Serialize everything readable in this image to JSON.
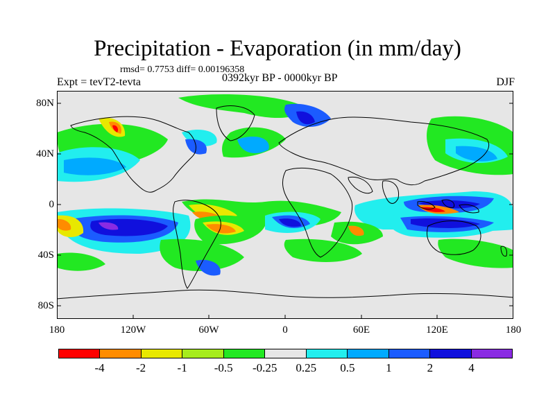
{
  "title": "Precipitation - Evaporation (in mm/day)",
  "stats": "rmsd= 0.7753 diff= 0.00196358",
  "experiment": "Expt = tevT2-tevta",
  "period": "0392kyr BP - 0000kyr BP",
  "season": "DJF",
  "axes": {
    "y_ticks": [
      "80N",
      "40N",
      "0",
      "40S",
      "80S"
    ],
    "x_ticks": [
      "180",
      "120W",
      "60W",
      "0",
      "60E",
      "120E",
      "180"
    ]
  },
  "colorbar": {
    "colors": [
      "#ff0000",
      "#ff8c00",
      "#e8e800",
      "#a6ec1c",
      "#22e822",
      "#e6e6e6",
      "#22eeee",
      "#00aaff",
      "#1b5cff",
      "#1010dd",
      "#8a2be2"
    ],
    "labels": [
      "-4",
      "-2",
      "-1",
      "-0.5",
      "-0.25",
      "0.25",
      "0.5",
      "1",
      "2",
      "4"
    ]
  },
  "colors": {
    "background_field": "#e6e6e6",
    "frame": "#000000"
  }
}
